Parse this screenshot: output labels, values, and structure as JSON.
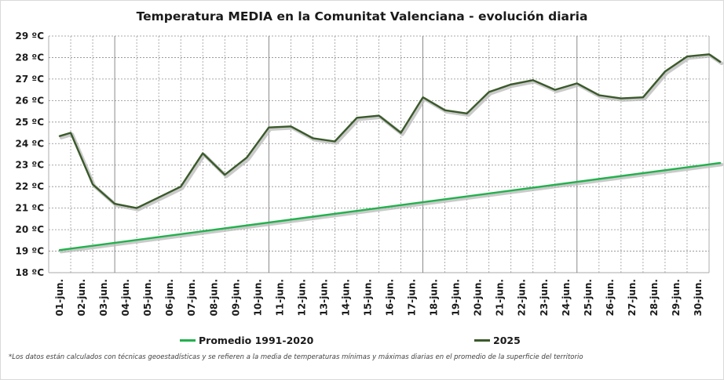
{
  "chart_data": {
    "type": "line",
    "title": "Temperatura MEDIA en la Comunitat Valenciana - evolución diaria",
    "categories": [
      "01-jun.",
      "02-jun.",
      "03-jun.",
      "04-jun.",
      "05-jun.",
      "06-jun.",
      "07-jun.",
      "08-jun.",
      "09-jun.",
      "10-jun.",
      "11-jun.",
      "12-jun.",
      "13-jun.",
      "14-jun.",
      "15-jun.",
      "16-jun.",
      "17-jun.",
      "18-jun.",
      "19-jun.",
      "20-jun.",
      "21-jun.",
      "22-jun.",
      "23-jun.",
      "24-jun.",
      "25-jun.",
      "26-jun.",
      "27-jun.",
      "28-jun.",
      "29-jun.",
      "30-jun."
    ],
    "y_tick_labels": [
      "18 ºC",
      "19 ºC",
      "20 ºC",
      "21 ºC",
      "22 ºC",
      "23 ºC",
      "24 ºC",
      "25 ºC",
      "26 ºC",
      "27 ºC",
      "28 ºC",
      "29 ºC"
    ],
    "ylim": [
      18,
      29
    ],
    "series": [
      {
        "name": "Promedio 1991-2020",
        "color": "#22b14c",
        "x": [
          0.5,
          30.5
        ],
        "values": [
          19.05,
          23.1
        ]
      },
      {
        "name": "2025",
        "color": "#3a5a2a",
        "x": [
          0.5,
          1,
          2,
          3,
          4,
          5,
          6,
          7,
          8,
          9,
          10,
          11,
          12,
          13,
          14,
          15,
          16,
          17,
          18,
          19,
          20,
          21,
          22,
          23,
          24,
          25,
          26,
          27,
          28,
          29,
          30,
          30.5
        ],
        "values": [
          24.35,
          24.5,
          22.1,
          21.2,
          21.0,
          21.5,
          22.0,
          23.55,
          22.55,
          23.35,
          24.75,
          24.8,
          24.25,
          24.1,
          25.2,
          25.3,
          24.5,
          26.15,
          25.55,
          25.4,
          26.4,
          26.75,
          26.95,
          26.5,
          26.8,
          26.25,
          26.1,
          26.15,
          27.35,
          28.05,
          28.15,
          27.8
        ]
      }
    ],
    "grid": true,
    "legend_position": "bottom",
    "footnote": "*Los datos están calculados con técnicas geoestadísticas y se refieren a la media de temperaturas mínimas y máximas diarias en el promedio de la superficie del territorio"
  }
}
